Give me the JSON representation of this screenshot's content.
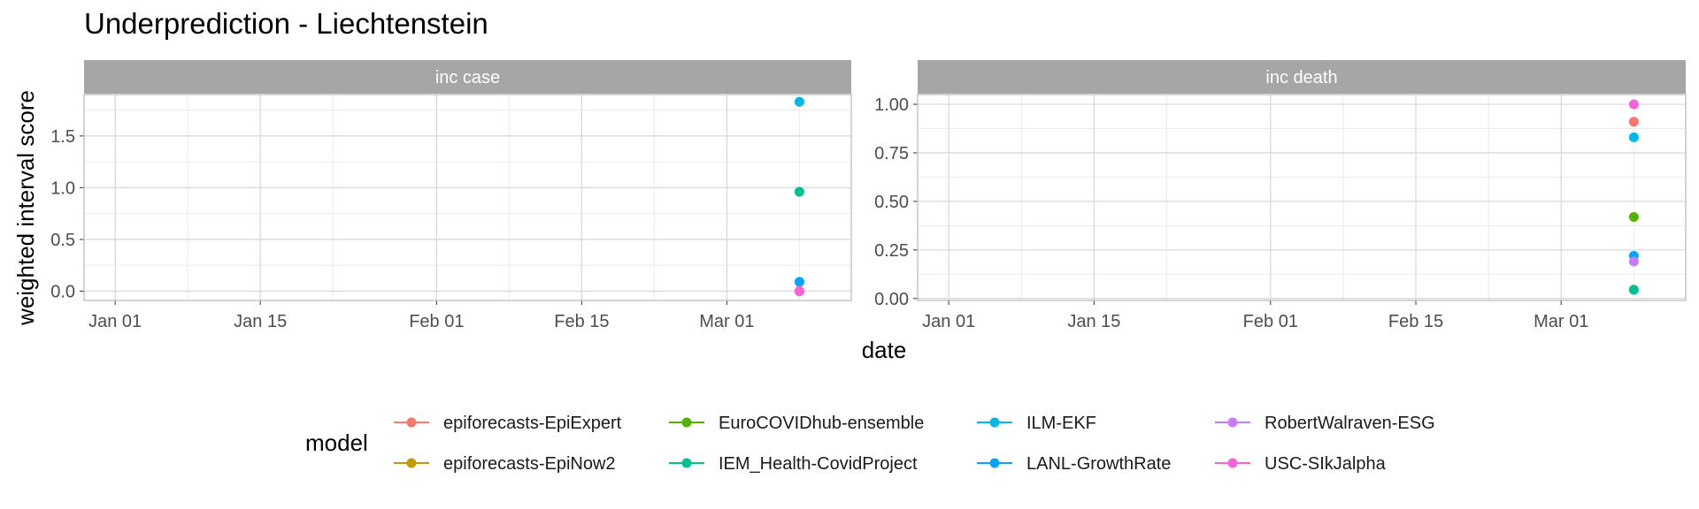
{
  "title": "Underprediction - Liechtenstein",
  "y_axis_title": "weighted interval score",
  "x_axis_title": "date",
  "legend_title": "model",
  "x_tick_labels": [
    "Jan 01",
    "Jan 15",
    "Feb 01",
    "Feb 15",
    "Mar 01"
  ],
  "colors": {
    "epiforecasts-EpiExpert": "#F8766D",
    "epiforecasts-EpiNow2": "#C49A00",
    "EuroCOVIDhub-ensemble": "#53B400",
    "IEM_Health-CovidProject": "#00C094",
    "ILM-EKF": "#00B6EB",
    "LANL-GrowthRate": "#06A4FF",
    "RobertWalraven-ESG": "#C77CFF",
    "USC-SIkJalpha": "#FB61D7",
    "strip_bg": "#A6A6A6",
    "grid_major": "#D9D9D9",
    "grid_minor": "#EBEBEB"
  },
  "legend": [
    "epiforecasts-EpiExpert",
    "epiforecasts-EpiNow2",
    "EuroCOVIDhub-ensemble",
    "IEM_Health-CovidProject",
    "ILM-EKF",
    "LANL-GrowthRate",
    "RobertWalraven-ESG",
    "USC-SIkJalpha"
  ],
  "chart_data": [
    {
      "type": "scatter",
      "panel": "inc case",
      "xlim": [
        "2020-12-29",
        "2021-03-13"
      ],
      "ylim": [
        -0.09,
        1.9
      ],
      "y_ticks": [
        0.0,
        0.5,
        1.0,
        1.5
      ],
      "y_tick_labels": [
        "0.0",
        "0.5",
        "1.0",
        "1.5"
      ],
      "grid": true,
      "series": [
        {
          "name": "epiforecasts-EpiExpert",
          "x": [
            "2021-03-08"
          ],
          "y": [
            0.0
          ]
        },
        {
          "name": "epiforecasts-EpiNow2",
          "x": [
            "2021-03-08"
          ],
          "y": [
            0.0
          ]
        },
        {
          "name": "EuroCOVIDhub-ensemble",
          "x": [
            "2021-03-08"
          ],
          "y": [
            0.0
          ]
        },
        {
          "name": "IEM_Health-CovidProject",
          "x": [
            "2021-03-08"
          ],
          "y": [
            0.96
          ]
        },
        {
          "name": "ILM-EKF",
          "x": [
            "2021-03-08"
          ],
          "y": [
            1.83
          ]
        },
        {
          "name": "LANL-GrowthRate",
          "x": [
            "2021-03-08"
          ],
          "y": [
            0.09
          ]
        },
        {
          "name": "RobertWalraven-ESG",
          "x": [
            "2021-03-08"
          ],
          "y": [
            0.0
          ]
        },
        {
          "name": "USC-SIkJalpha",
          "x": [
            "2021-03-08"
          ],
          "y": [
            0.0
          ]
        }
      ]
    },
    {
      "type": "scatter",
      "panel": "inc death",
      "xlim": [
        "2020-12-29",
        "2021-03-13"
      ],
      "ylim": [
        -0.01,
        1.05
      ],
      "y_ticks": [
        0.0,
        0.25,
        0.5,
        0.75,
        1.0
      ],
      "y_tick_labels": [
        "0.00",
        "0.25",
        "0.50",
        "0.75",
        "1.00"
      ],
      "grid": true,
      "series": [
        {
          "name": "epiforecasts-EpiExpert",
          "x": [
            "2021-03-08"
          ],
          "y": [
            0.91
          ]
        },
        {
          "name": "epiforecasts-EpiNow2",
          "x": [
            "2021-03-08"
          ],
          "y": [
            0.045
          ]
        },
        {
          "name": "EuroCOVIDhub-ensemble",
          "x": [
            "2021-03-08"
          ],
          "y": [
            0.42
          ]
        },
        {
          "name": "IEM_Health-CovidProject",
          "x": [
            "2021-03-08"
          ],
          "y": [
            0.045
          ]
        },
        {
          "name": "ILM-EKF",
          "x": [
            "2021-03-08"
          ],
          "y": [
            0.83
          ]
        },
        {
          "name": "LANL-GrowthRate",
          "x": [
            "2021-03-08"
          ],
          "y": [
            0.22
          ]
        },
        {
          "name": "RobertWalraven-ESG",
          "x": [
            "2021-03-08"
          ],
          "y": [
            0.19
          ]
        },
        {
          "name": "USC-SIkJalpha",
          "x": [
            "2021-03-08"
          ],
          "y": [
            1.0
          ]
        }
      ]
    }
  ]
}
